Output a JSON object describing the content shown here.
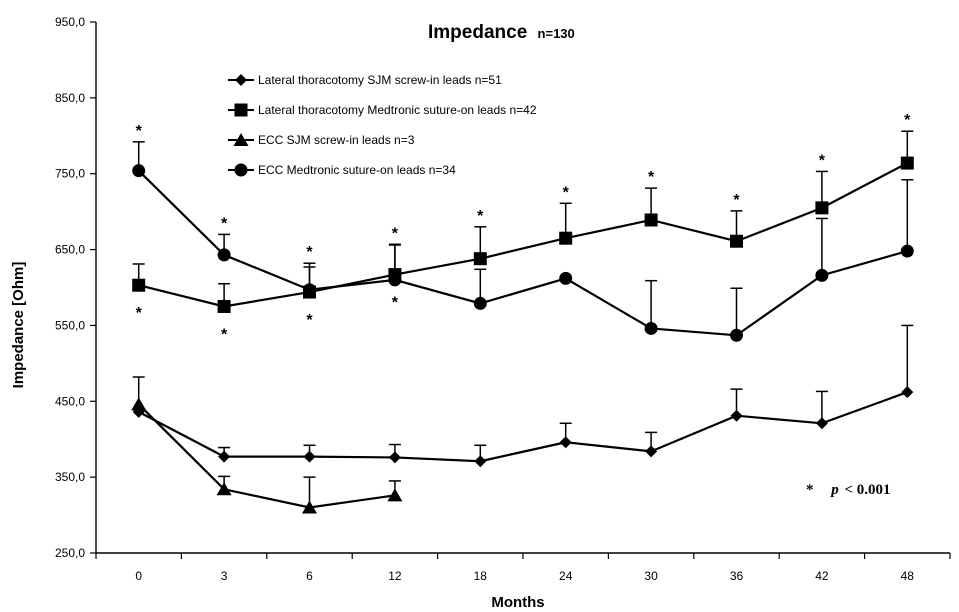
{
  "chart_data": {
    "type": "line",
    "title": "Impedance",
    "subtitle": "n=130",
    "xlabel": "Months",
    "ylabel": "Impedance [Ohm]",
    "categories": [
      "0",
      "3",
      "6",
      "12",
      "18",
      "24",
      "30",
      "36",
      "42",
      "48"
    ],
    "ylim": [
      250,
      950
    ],
    "yticks": [
      250,
      350,
      450,
      550,
      650,
      750,
      850,
      950
    ],
    "ytick_labels": [
      "250,0",
      "350,0",
      "450,0",
      "550,0",
      "650,0",
      "750,0",
      "850,0",
      "950,0"
    ],
    "grid": false,
    "legend_position": "top-left",
    "series": [
      {
        "name": "Lateral thoracotomy SJM screw-in leads n=51",
        "marker": "diamond",
        "values": [
          436,
          377,
          377,
          376,
          371,
          396,
          384,
          431,
          421,
          462
        ],
        "errors": [
          0,
          12,
          15,
          17,
          21,
          25,
          25,
          35,
          42,
          88
        ]
      },
      {
        "name": "Lateral thoracotomy Medtronic suture-on leads n=42",
        "marker": "square",
        "values": [
          603,
          575,
          594,
          617,
          638,
          665,
          689,
          661,
          705,
          764
        ],
        "errors": [
          28,
          30,
          33,
          40,
          42,
          46,
          42,
          40,
          48,
          42
        ]
      },
      {
        "name": "ECC SJM screw-in leads n=3",
        "marker": "triangle",
        "values": [
          446,
          334,
          310,
          326,
          null,
          null,
          null,
          null,
          null,
          null
        ],
        "errors": [
          36,
          17,
          40,
          19,
          null,
          null,
          null,
          null,
          null,
          null
        ]
      },
      {
        "name": "ECC Medtronic suture-on leads n=34",
        "marker": "circle",
        "values": [
          754,
          643,
          597,
          610,
          579,
          612,
          546,
          537,
          616,
          648
        ],
        "errors": [
          38,
          27,
          35,
          46,
          45,
          0,
          63,
          62,
          75,
          94
        ]
      }
    ],
    "significance_markers": {
      "symbol": "*",
      "above": [
        0,
        1,
        2,
        3,
        4,
        5,
        6,
        7,
        8,
        9
      ],
      "below": [
        0,
        1,
        2,
        3
      ]
    },
    "annotation": {
      "star": "*",
      "p_label": "p",
      "p_rest": "< 0.001"
    }
  }
}
